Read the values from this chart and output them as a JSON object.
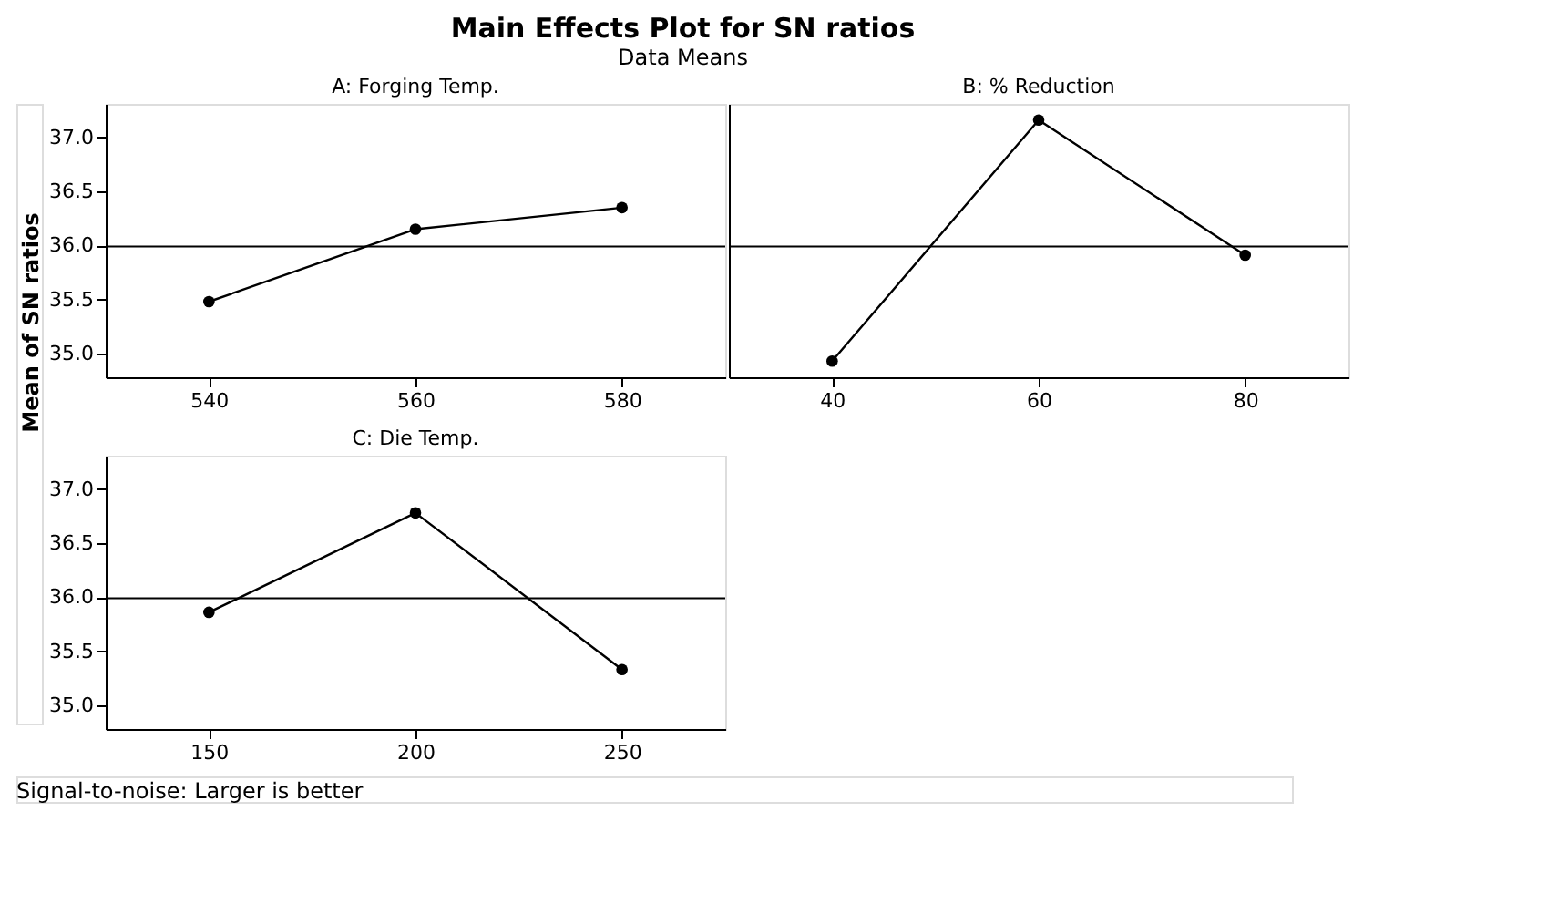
{
  "chart_data": [
    {
      "type": "other",
      "title": "Main Effects Plot for SN ratios",
      "subtitle": "Data Means",
      "ylabel": "Mean of SN ratios",
      "annotations": [
        "Signal-to-noise: Larger is better"
      ]
    },
    {
      "type": "line",
      "title": "A: Forging Temp.",
      "x": [
        540,
        560,
        580
      ],
      "series": [
        {
          "color": "#000000",
          "values": [
            35.48,
            36.15,
            36.35
          ]
        }
      ],
      "xlim": [
        530,
        590
      ],
      "xticks": [
        540,
        560,
        580
      ],
      "ylim": [
        34.78,
        37.31
      ],
      "yticks": [
        {
          "value": 35,
          "label": "35.0"
        },
        {
          "value": 35.5,
          "label": "35.5"
        },
        {
          "value": 36,
          "label": "36.0"
        },
        {
          "value": 36.5,
          "label": "36.5"
        },
        {
          "value": 37,
          "label": "37.0"
        }
      ],
      "marker": "circle",
      "line_style": "solid",
      "grid": false,
      "ref_lines": [
        {
          "axis": "y",
          "value": 35.99
        }
      ]
    },
    {
      "type": "line",
      "title": "B: % Reduction",
      "x": [
        40,
        60,
        80
      ],
      "series": [
        {
          "color": "#000000",
          "values": [
            34.93,
            37.16,
            35.91
          ]
        }
      ],
      "xlim": [
        30,
        90
      ],
      "xticks": [
        40,
        60,
        80
      ],
      "ylim": [
        34.78,
        37.31
      ],
      "tick_labels": "x",
      "marker": "circle",
      "line_style": "solid",
      "grid": false,
      "ref_lines": [
        {
          "axis": "y",
          "value": 35.99
        }
      ]
    },
    {
      "type": "line",
      "title": "C: Die Temp.",
      "x": [
        150,
        200,
        250
      ],
      "series": [
        {
          "color": "#000000",
          "values": [
            35.86,
            36.78,
            35.33
          ]
        }
      ],
      "xlim": [
        125,
        275
      ],
      "xticks": [
        150,
        200,
        250
      ],
      "ylim": [
        34.78,
        37.31
      ],
      "yticks": [
        {
          "value": 35,
          "label": "35.0"
        },
        {
          "value": 35.5,
          "label": "35.5"
        },
        {
          "value": 36,
          "label": "36.0"
        },
        {
          "value": 36.5,
          "label": "36.5"
        },
        {
          "value": 37,
          "label": "37.0"
        }
      ],
      "marker": "circle",
      "line_style": "solid",
      "grid": false,
      "ref_lines": [
        {
          "axis": "y",
          "value": 35.99
        }
      ]
    }
  ]
}
